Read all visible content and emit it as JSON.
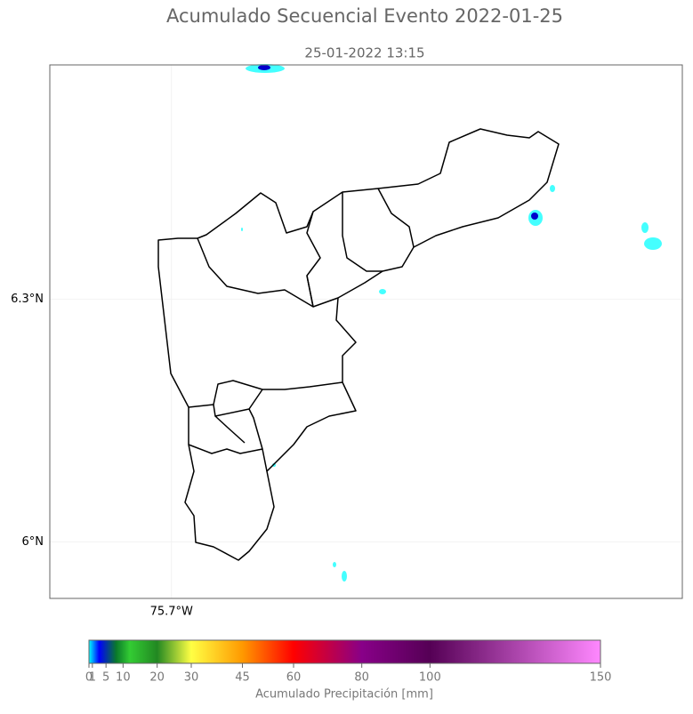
{
  "chart_data": {
    "type": "map",
    "title": "Acumulado Secuencial Evento 2022-01-25",
    "subtitle": "25-01-2022 13:15",
    "xlim": [
      -75.85,
      -75.07
    ],
    "ylim": [
      5.93,
      6.59
    ],
    "xticks": [
      {
        "value": -75.7,
        "label": "75.7°W"
      }
    ],
    "yticks": [
      {
        "value": 6.0,
        "label": "6°N"
      },
      {
        "value": 6.3,
        "label": "6.3°N"
      }
    ],
    "colorbar": {
      "label": "Acumulado Precipitación [mm]",
      "lim": [
        0,
        150
      ],
      "ticks": [
        0,
        1,
        5,
        10,
        20,
        30,
        45,
        60,
        80,
        100,
        150
      ],
      "stops": [
        {
          "value": 0,
          "color": "#00ffff"
        },
        {
          "value": 3,
          "color": "#0000ff"
        },
        {
          "value": 8,
          "color": "#0a7a2a"
        },
        {
          "value": 12,
          "color": "#33cc33"
        },
        {
          "value": 20,
          "color": "#228822"
        },
        {
          "value": 30,
          "color": "#ffff44"
        },
        {
          "value": 45,
          "color": "#ff9900"
        },
        {
          "value": 60,
          "color": "#ff0000"
        },
        {
          "value": 80,
          "color": "#880088"
        },
        {
          "value": 100,
          "color": "#550055"
        },
        {
          "value": 150,
          "color": "#ff88ff"
        }
      ]
    }
  }
}
